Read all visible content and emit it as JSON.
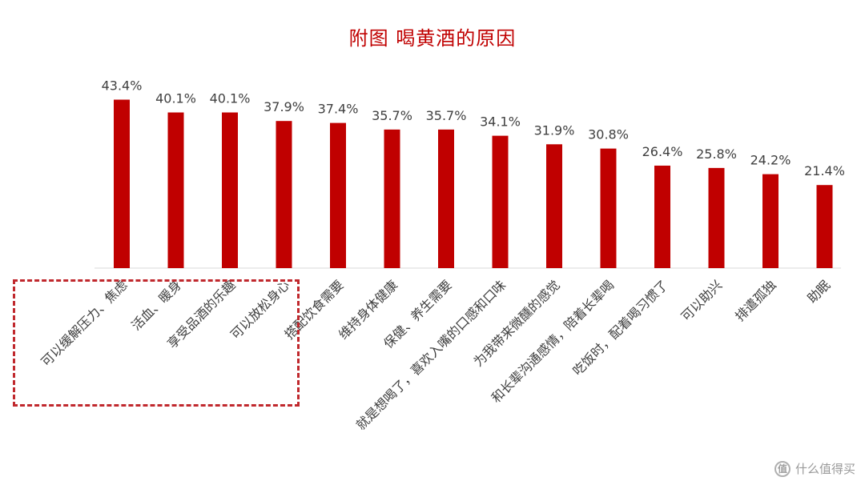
{
  "chart_data": {
    "type": "bar",
    "title": "附图  喝黄酒的原因",
    "categories": [
      "可以缓解压力、焦虑",
      "活血、暖身",
      "享受品酒的乐趣",
      "可以放松身心",
      "搭配饮食需要",
      "维持身体健康",
      "保健、养生需要",
      "就是想喝了，喜欢入嘴的口感和口味",
      "为我带来微醺的感觉",
      "和长辈沟通感情，陪着长辈喝",
      "吃饭时，配着喝习惯了",
      "可以助兴",
      "排遣孤独",
      "助眠"
    ],
    "values": [
      43.4,
      40.1,
      40.1,
      37.9,
      37.4,
      35.7,
      35.7,
      34.1,
      31.9,
      30.8,
      26.4,
      25.8,
      24.2,
      21.4
    ],
    "value_labels": [
      "43.4%",
      "40.1%",
      "40.1%",
      "37.9%",
      "37.4%",
      "35.7%",
      "35.7%",
      "34.1%",
      "31.9%",
      "30.8%",
      "26.4%",
      "25.8%",
      "24.2%",
      "21.4%"
    ],
    "ylim": [
      0,
      50
    ],
    "grid": false,
    "legend": "none",
    "bar_color": "#c00000",
    "highlight": {
      "style": "dashed-box",
      "color": "#c0282d",
      "covers_first_n_categories": 4
    }
  },
  "watermark": {
    "badge": "值",
    "text": "什么值得买"
  }
}
